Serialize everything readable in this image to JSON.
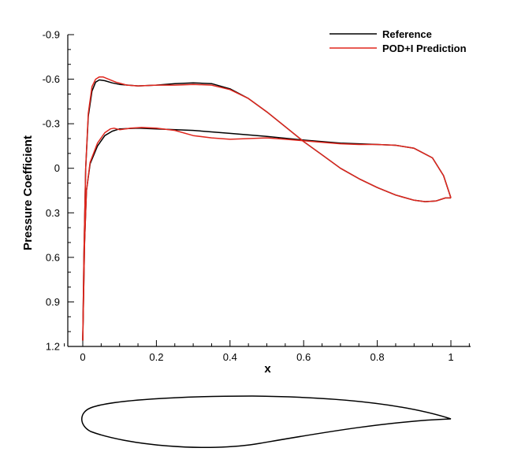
{
  "chart_data": {
    "type": "line",
    "xlabel": "x",
    "ylabel": "Pressure Coefficient",
    "xlim": [
      0,
      1
    ],
    "ylim": [
      1.2,
      -0.9
    ],
    "y_inverted": true,
    "x_ticks": [
      0,
      0.2,
      0.4,
      0.6,
      0.8,
      1
    ],
    "x_tick_labels": [
      "0",
      "0.2",
      "0.4",
      "0.6",
      "0.8",
      "1"
    ],
    "y_ticks": [
      -0.9,
      -0.6,
      -0.3,
      0,
      0.3,
      0.6,
      0.9,
      1.2
    ],
    "y_tick_labels": [
      "-0.9",
      "-0.6",
      "-0.3",
      "0",
      "0.3",
      "0.6",
      "0.9",
      "1.2"
    ],
    "grid": false,
    "legend_position": "top-right",
    "series": [
      {
        "name": "Reference",
        "color": "#000000",
        "upper": [
          [
            0.0,
            1.16
          ],
          [
            0.003,
            0.6
          ],
          [
            0.008,
            0.0
          ],
          [
            0.015,
            -0.35
          ],
          [
            0.025,
            -0.52
          ],
          [
            0.035,
            -0.58
          ],
          [
            0.045,
            -0.595
          ],
          [
            0.06,
            -0.59
          ],
          [
            0.08,
            -0.575
          ],
          [
            0.1,
            -0.565
          ],
          [
            0.15,
            -0.555
          ],
          [
            0.2,
            -0.56
          ],
          [
            0.25,
            -0.57
          ],
          [
            0.3,
            -0.575
          ],
          [
            0.35,
            -0.57
          ],
          [
            0.4,
            -0.535
          ],
          [
            0.45,
            -0.47
          ],
          [
            0.5,
            -0.38
          ],
          [
            0.55,
            -0.28
          ],
          [
            0.6,
            -0.18
          ],
          [
            0.65,
            -0.09
          ],
          [
            0.7,
            0.0
          ],
          [
            0.75,
            0.07
          ],
          [
            0.8,
            0.13
          ],
          [
            0.85,
            0.18
          ],
          [
            0.9,
            0.215
          ],
          [
            0.93,
            0.225
          ],
          [
            0.96,
            0.22
          ],
          [
            0.985,
            0.2
          ],
          [
            1.0,
            0.2
          ]
        ],
        "lower": [
          [
            0.0,
            1.16
          ],
          [
            0.005,
            0.5
          ],
          [
            0.01,
            0.15
          ],
          [
            0.02,
            -0.03
          ],
          [
            0.04,
            -0.15
          ],
          [
            0.06,
            -0.22
          ],
          [
            0.08,
            -0.25
          ],
          [
            0.1,
            -0.265
          ],
          [
            0.15,
            -0.27
          ],
          [
            0.2,
            -0.265
          ],
          [
            0.3,
            -0.255
          ],
          [
            0.4,
            -0.235
          ],
          [
            0.5,
            -0.215
          ],
          [
            0.6,
            -0.19
          ],
          [
            0.7,
            -0.17
          ],
          [
            0.8,
            -0.16
          ],
          [
            0.85,
            -0.155
          ],
          [
            0.9,
            -0.135
          ],
          [
            0.95,
            -0.07
          ],
          [
            0.98,
            0.05
          ],
          [
            1.0,
            0.2
          ]
        ]
      },
      {
        "name": "POD+I Prediction",
        "color": "#e0261d",
        "upper": [
          [
            0.0,
            1.16
          ],
          [
            0.003,
            0.6
          ],
          [
            0.008,
            0.0
          ],
          [
            0.015,
            -0.37
          ],
          [
            0.025,
            -0.55
          ],
          [
            0.035,
            -0.6
          ],
          [
            0.045,
            -0.615
          ],
          [
            0.055,
            -0.615
          ],
          [
            0.07,
            -0.6
          ],
          [
            0.09,
            -0.58
          ],
          [
            0.12,
            -0.56
          ],
          [
            0.15,
            -0.555
          ],
          [
            0.2,
            -0.56
          ],
          [
            0.25,
            -0.56
          ],
          [
            0.3,
            -0.565
          ],
          [
            0.35,
            -0.56
          ],
          [
            0.4,
            -0.53
          ],
          [
            0.45,
            -0.47
          ],
          [
            0.5,
            -0.38
          ],
          [
            0.55,
            -0.28
          ],
          [
            0.6,
            -0.18
          ],
          [
            0.65,
            -0.09
          ],
          [
            0.7,
            0.0
          ],
          [
            0.75,
            0.07
          ],
          [
            0.8,
            0.13
          ],
          [
            0.85,
            0.18
          ],
          [
            0.9,
            0.215
          ],
          [
            0.93,
            0.225
          ],
          [
            0.96,
            0.22
          ],
          [
            0.985,
            0.2
          ],
          [
            1.0,
            0.2
          ]
        ],
        "lower": [
          [
            0.0,
            1.16
          ],
          [
            0.005,
            0.5
          ],
          [
            0.01,
            0.15
          ],
          [
            0.02,
            -0.04
          ],
          [
            0.04,
            -0.17
          ],
          [
            0.06,
            -0.24
          ],
          [
            0.075,
            -0.265
          ],
          [
            0.085,
            -0.27
          ],
          [
            0.1,
            -0.26
          ],
          [
            0.13,
            -0.27
          ],
          [
            0.16,
            -0.275
          ],
          [
            0.2,
            -0.27
          ],
          [
            0.25,
            -0.255
          ],
          [
            0.3,
            -0.22
          ],
          [
            0.35,
            -0.205
          ],
          [
            0.4,
            -0.195
          ],
          [
            0.45,
            -0.2
          ],
          [
            0.5,
            -0.205
          ],
          [
            0.55,
            -0.195
          ],
          [
            0.6,
            -0.185
          ],
          [
            0.65,
            -0.175
          ],
          [
            0.7,
            -0.165
          ],
          [
            0.75,
            -0.16
          ],
          [
            0.8,
            -0.16
          ],
          [
            0.85,
            -0.155
          ],
          [
            0.9,
            -0.135
          ],
          [
            0.95,
            -0.07
          ],
          [
            0.98,
            0.05
          ],
          [
            1.0,
            0.2
          ]
        ]
      }
    ]
  }
}
